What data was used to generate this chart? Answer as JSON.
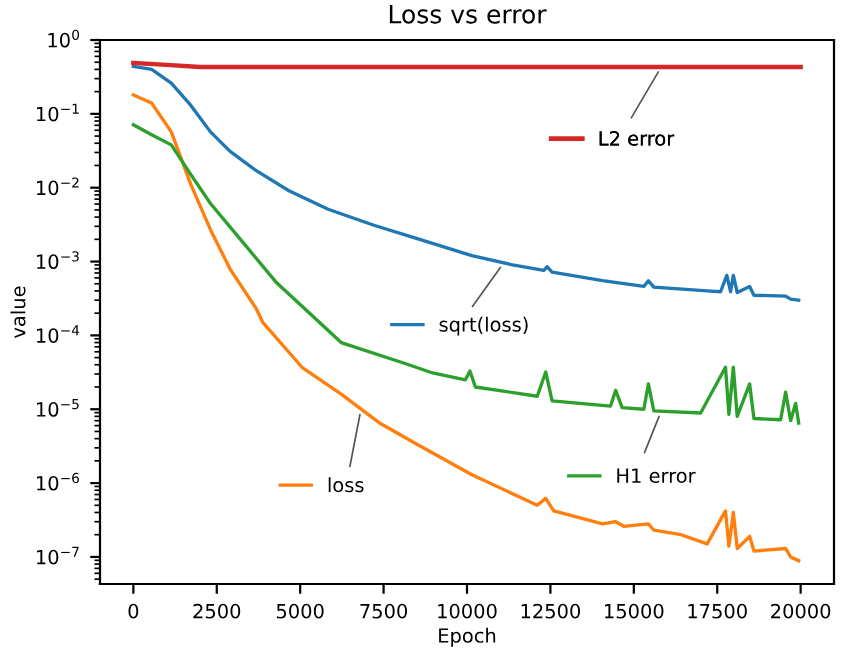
{
  "chart_data": {
    "type": "line",
    "title": "Loss vs error",
    "xlabel": "Epoch",
    "ylabel": "value",
    "log": "y",
    "xlim": [
      -1000,
      21000
    ],
    "xticks": [
      0,
      2500,
      5000,
      7500,
      10000,
      12500,
      15000,
      17500,
      20000
    ],
    "ylim": [
      4.3e-08,
      1
    ],
    "yticks": [
      {
        "value": 1,
        "label": "10$^{0}$"
      },
      {
        "value": 0.1,
        "label": "10$^{−1}$"
      },
      {
        "value": 0.01,
        "label": "10$^{−2}$"
      },
      {
        "value": 0.001,
        "label": "10$^{−3}$"
      },
      {
        "value": 0.0001,
        "label": "10$^{−4}$"
      },
      {
        "value": 1e-05,
        "label": "10$^{−5}$"
      },
      {
        "value": 1e-06,
        "label": "10$^{−6}$"
      },
      {
        "value": 1e-07,
        "label": "10$^{−7}$"
      }
    ],
    "grid": false,
    "legend": "center",
    "marker": "none",
    "line_style": "solid",
    "series": [
      {
        "name": "loss",
        "color": "#ff7f0e",
        "x": [
          0,
          548,
          1136,
          1724,
          2311,
          2900,
          3683,
          3879,
          5054,
          6229,
          7404,
          8580,
          10147,
          12106,
          12360,
          12600,
          14064,
          14456,
          14700,
          15436,
          15600,
          16415,
          17199,
          17748,
          17850,
          17983,
          18100,
          18472,
          18600,
          19550,
          19700,
          19942
        ],
        "values": [
          0.18,
          0.14,
          0.057,
          0.011,
          0.0027,
          0.00079,
          0.00023,
          0.00015,
          3.7e-05,
          1.6e-05,
          6.4e-06,
          3.2e-06,
          1.3e-06,
          5e-07,
          6.2e-07,
          4.2e-07,
          2.8e-07,
          3e-07,
          2.6e-07,
          2.8e-07,
          2.3e-07,
          2e-07,
          1.5e-07,
          4.2e-07,
          1.4e-07,
          4e-07,
          1.3e-07,
          1.9e-07,
          1.2e-07,
          1.3e-07,
          1e-07,
          8.9e-08
        ]
      },
      {
        "name": "sqrt(loss)",
        "color": "#1f77b4",
        "x": [
          0,
          548,
          1136,
          1724,
          2311,
          2900,
          3683,
          4662,
          5838,
          7209,
          8580,
          10147,
          11322,
          12302,
          12400,
          12550,
          14064,
          15300,
          15436,
          15600,
          17199,
          17600,
          17787,
          17900,
          17983,
          18100,
          18472,
          18600,
          19550,
          19700,
          19942
        ],
        "values": [
          0.44,
          0.4,
          0.26,
          0.13,
          0.057,
          0.031,
          0.017,
          0.0091,
          0.0051,
          0.0031,
          0.002,
          0.0012,
          0.00091,
          0.00076,
          0.00085,
          0.00072,
          0.00055,
          0.00046,
          0.00055,
          0.00045,
          0.0004,
          0.00039,
          0.00065,
          0.00039,
          0.00065,
          0.00038,
          0.00046,
          0.00035,
          0.00034,
          0.00031,
          0.0003
        ]
      },
      {
        "name": "H1 error",
        "color": "#2ca02c",
        "x": [
          0,
          548,
          1136,
          1724,
          2311,
          3291,
          4270,
          6229,
          8188,
          8971,
          9951,
          10088,
          10250,
          12106,
          12360,
          12550,
          14300,
          14456,
          14650,
          15300,
          15436,
          15600,
          17003,
          17748,
          17850,
          17983,
          18100,
          18472,
          18600,
          19400,
          19550,
          19700,
          19850,
          19942
        ],
        "values": [
          0.071,
          0.052,
          0.038,
          0.015,
          0.0061,
          0.0018,
          0.00053,
          8e-05,
          4.1e-05,
          3.1e-05,
          2.5e-05,
          3.3e-05,
          2e-05,
          1.5e-05,
          3.2e-05,
          1.3e-05,
          1.1e-05,
          1.8e-05,
          1.05e-05,
          1e-05,
          2.2e-05,
          9.5e-06,
          8.9e-06,
          3.7e-05,
          8.5e-06,
          3.7e-05,
          8e-06,
          2.2e-05,
          7.5e-06,
          7.2e-06,
          1.7e-05,
          7e-06,
          1.2e-05,
          6.5e-06
        ]
      },
      {
        "name": "L2 error",
        "color": "#d62728",
        "x": [
          0,
          1000,
          2000,
          3000,
          20000
        ],
        "values": [
          0.49,
          0.46,
          0.43,
          0.43,
          0.43
        ]
      }
    ]
  }
}
